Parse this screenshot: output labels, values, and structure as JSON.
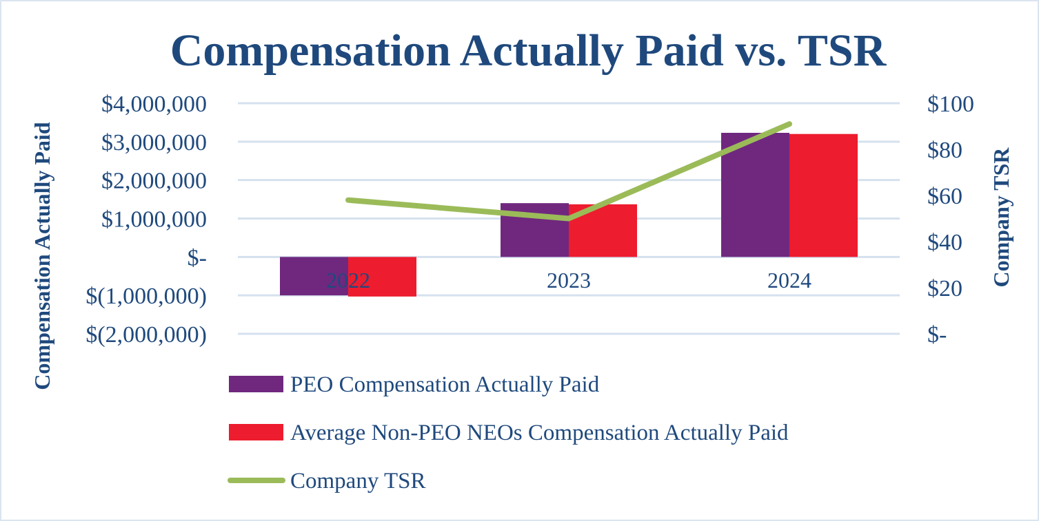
{
  "chart_data": {
    "type": "bar",
    "title": "Compensation Actually Paid vs. TSR",
    "categories": [
      "2022",
      "2023",
      "2024"
    ],
    "y_left": {
      "label": "Compensation Actually Paid",
      "ticks": [
        4000000,
        3000000,
        2000000,
        1000000,
        0,
        -1000000,
        -2000000
      ],
      "tick_labels": [
        "$4,000,000",
        "$3,000,000",
        "$2,000,000",
        "$1,000,000",
        "$-",
        "$(1,000,000)",
        "$(2,000,000)"
      ],
      "ylim": [
        -2000000,
        4000000
      ]
    },
    "y_right": {
      "label": "Company TSR",
      "ticks": [
        100,
        80,
        60,
        40,
        20,
        0
      ],
      "tick_labels": [
        "$100",
        "$80",
        "$60",
        "$40",
        "$20",
        "$-"
      ],
      "ylim": [
        0,
        100
      ]
    },
    "series": [
      {
        "name": "PEO Compensation Actually Paid",
        "type": "bar",
        "axis": "left",
        "color": "#70287f",
        "values": [
          -1000000,
          1400000,
          3230000
        ]
      },
      {
        "name": "Average Non-PEO NEOs Compensation Actually Paid",
        "type": "bar",
        "axis": "left",
        "color": "#ed1c2e",
        "values": [
          -1030000,
          1370000,
          3200000
        ]
      },
      {
        "name": "Company TSR",
        "type": "line",
        "axis": "right",
        "color": "#9bbb59",
        "values": [
          58,
          50,
          91
        ]
      }
    ],
    "grid": true,
    "legend_position": "bottom-left"
  }
}
